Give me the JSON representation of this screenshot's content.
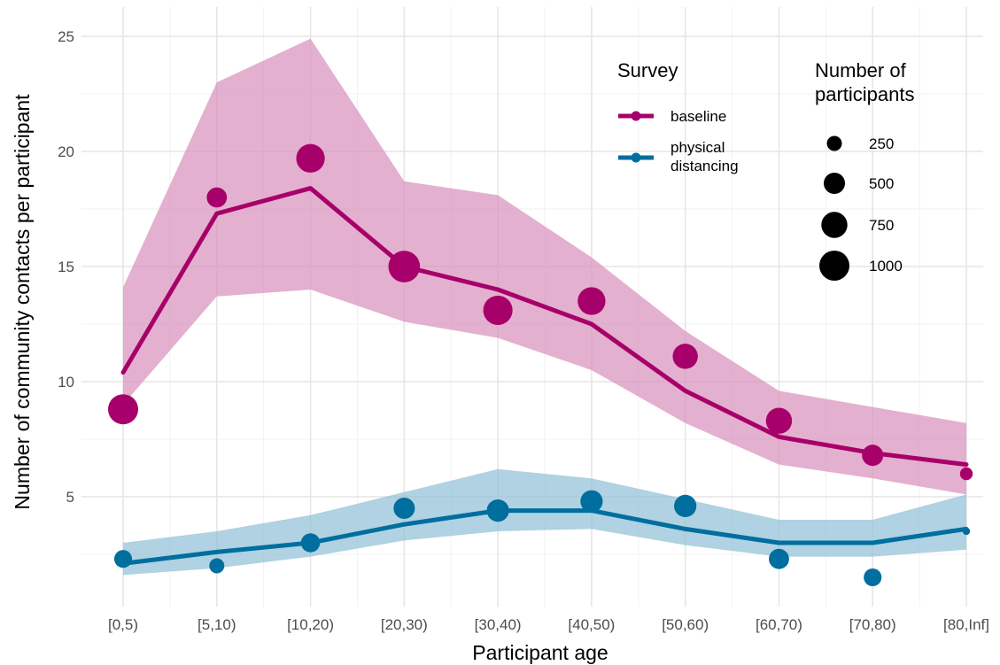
{
  "chart_data": {
    "type": "line",
    "title": "",
    "xlabel": "Participant age",
    "ylabel": "Number of community contacts per participant",
    "categories": [
      "[0,5)",
      "[5,10)",
      "[10,20)",
      "[20,30)",
      "[30,40)",
      "[40,50)",
      "[50,60)",
      "[60,70)",
      "[70,80)",
      "[80,Inf]"
    ],
    "y_ticks": [
      5,
      10,
      15,
      20,
      25
    ],
    "ylim": [
      0.8,
      25.6
    ],
    "grid": true,
    "legend_placement": "top-right",
    "legend": {
      "color_title": "Survey",
      "size_title_lines": [
        "Number of",
        "participants"
      ],
      "size_breaks": [
        250,
        500,
        750,
        1000
      ]
    },
    "series": [
      {
        "name": "baseline",
        "color": "#a8006a",
        "ribbon_color": "#d98eba",
        "fit": [
          10.4,
          17.3,
          18.4,
          15.0,
          14.0,
          12.5,
          9.6,
          7.6,
          6.9,
          6.4
        ],
        "lower": [
          9.0,
          13.7,
          14.0,
          12.6,
          11.9,
          10.5,
          8.2,
          6.4,
          5.8,
          5.1
        ],
        "upper": [
          14.1,
          23.0,
          24.9,
          18.7,
          18.1,
          15.4,
          12.2,
          9.6,
          8.9,
          8.2
        ],
        "observed": [
          8.8,
          18.0,
          19.7,
          15.0,
          13.1,
          13.5,
          11.1,
          8.3,
          6.8,
          6.0
        ],
        "participants": [
          1000,
          450,
          900,
          1100,
          950,
          850,
          700,
          750,
          500,
          180
        ]
      },
      {
        "name": "physical distancing",
        "color": "#006e9e",
        "ribbon_color": "#8fbfd6",
        "fit": [
          2.1,
          2.6,
          3.0,
          3.8,
          4.4,
          4.4,
          3.6,
          3.0,
          3.0,
          3.6
        ],
        "lower": [
          1.6,
          1.9,
          2.4,
          3.1,
          3.5,
          3.6,
          2.9,
          2.4,
          2.4,
          2.7
        ],
        "upper": [
          3.0,
          3.5,
          4.2,
          5.2,
          6.2,
          5.8,
          4.9,
          4.0,
          4.0,
          5.1
        ],
        "observed": [
          2.3,
          2.0,
          3.0,
          4.5,
          4.4,
          4.8,
          4.6,
          2.3,
          1.5,
          3.5
        ],
        "participants": [
          350,
          250,
          400,
          500,
          550,
          550,
          550,
          450,
          350,
          60
        ]
      }
    ]
  }
}
